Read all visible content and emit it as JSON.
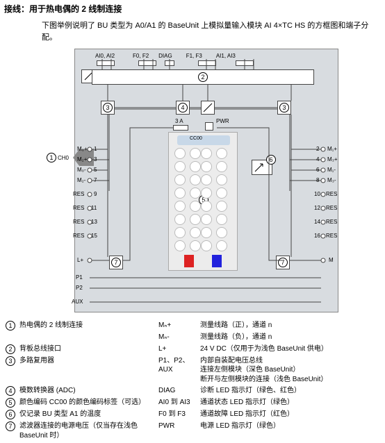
{
  "header": {
    "title": "接线：用于热电偶的 2 线制连接",
    "intro": "下图举例说明了 BU 类型为 A0/A1 的 BaseUnit 上模拟量输入模块 AI 4×TC HS 的方框图和端子分配。"
  },
  "top": {
    "l0": "AI0, AI2",
    "l1": "F0, F2",
    "l2": "DIAG",
    "l3": "F1, F3",
    "l4": "AI1, AI3"
  },
  "diagram": {
    "ch0": "CH0",
    "cc00": "CC00",
    "fuse": "3 A",
    "pwr": "PWR",
    "left_pins": {
      "p1": "M₀+",
      "p2": "M₂+",
      "p3": "M₀-",
      "p4": "M₂-",
      "p5": "RES",
      "p6": "RES",
      "p7": "RES",
      "p8": "RES",
      "p9": "L+",
      "p10": "P1",
      "p11": "P2",
      "p12": "AUX"
    },
    "left_nums": {
      "n1": "1",
      "n2": "3",
      "n3": "5",
      "n4": "7",
      "n5": "9",
      "n6": "11",
      "n7": "13",
      "n8": "15"
    },
    "right_pins": {
      "p1": "M₁+",
      "p2": "M₃+",
      "p3": "M₁-",
      "p4": "M₃-",
      "p5": "RES",
      "p6": "RES",
      "p7": "RES",
      "p8": "RES",
      "p9": "M"
    },
    "right_nums": {
      "n1": "2",
      "n2": "4",
      "n3": "6",
      "n4": "8",
      "n5": "10",
      "n6": "12",
      "n7": "14",
      "n8": "16"
    },
    "nums": {
      "c1": "1",
      "c2": "2",
      "c3": "3",
      "c4": "4",
      "c5": "5",
      "c6": "6",
      "c7": "7"
    }
  },
  "legend": {
    "rows": [
      {
        "n": "1",
        "l": "热电偶的 2 线制连接",
        "k": "Mₙ+",
        "r": "测量线路（正），通道 n"
      },
      {
        "n": "",
        "l": "",
        "k": "Mₙ-",
        "r": "测量线路（负），通道 n"
      },
      {
        "n": "2",
        "l": "背板总线接口",
        "k": "L+",
        "r": "24 V DC（仅用于为浅色 BaseUnit 供电）"
      },
      {
        "n": "3",
        "l": "多路复用器",
        "k": "P1、P2、AUX",
        "r": "内部自装配电压总线\n连接左侧模块（深色 BaseUnit）\n断开与左侧模块的连接（浅色 BaseUnit）"
      },
      {
        "n": "4",
        "l": "模数转换器 (ADC)",
        "k": "DIAG",
        "r": "诊断 LED 指示灯（绿色、红色）"
      },
      {
        "n": "5",
        "l": "颜色编码 CC00 的颜色编码标签（可选）",
        "k": "AI0 到 AI3",
        "r": "通道状态 LED 指示灯（绿色）"
      },
      {
        "n": "6",
        "l": "仅记录 BU 类型 A1 的温度",
        "k": "F0 到 F3",
        "r": "通道故障 LED 指示灯（红色）"
      },
      {
        "n": "7",
        "l": "滤波器连接的电源电压（仅当存在浅色 BaseUnit 时）",
        "k": "PWR",
        "r": "电源 LED 指示灯（绿色）"
      }
    ]
  },
  "colors": {
    "bg": "#d8dce0",
    "red": "#d22",
    "blue": "#22d",
    "line": "#444"
  }
}
